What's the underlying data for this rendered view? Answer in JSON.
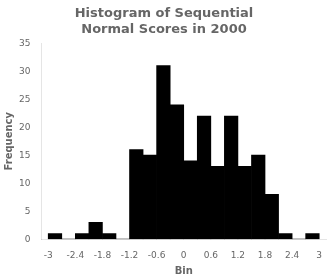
{
  "chart_data": {
    "type": "histogram",
    "title": "Histogram of Sequential\nNormal Scores in 2000",
    "x_label": "Bin",
    "y_label": "Frequency",
    "bins": [
      -3.0,
      -2.7,
      -2.4,
      -2.1,
      -1.8,
      -1.5,
      -1.2,
      -0.9,
      -0.6,
      -0.3,
      0.0,
      0.3,
      0.6,
      0.9,
      1.2,
      1.5,
      1.8,
      2.1,
      2.4,
      2.7,
      3.0
    ],
    "values": [
      1,
      0,
      1,
      3,
      1,
      0,
      16,
      15,
      31,
      24,
      14,
      22,
      13,
      22,
      13,
      15,
      8,
      1,
      0,
      1
    ],
    "color": "#000000",
    "xlim": [
      -3.15,
      3.15
    ],
    "xticks": [
      -3,
      -2.4,
      -1.8,
      -1.2,
      -0.6,
      0,
      0.6,
      1.2,
      1.8,
      2.4,
      3
    ],
    "ylim": [
      0,
      35
    ],
    "yticks": [
      0,
      5,
      10,
      15,
      20,
      25,
      30,
      35
    ],
    "grid": false
  }
}
